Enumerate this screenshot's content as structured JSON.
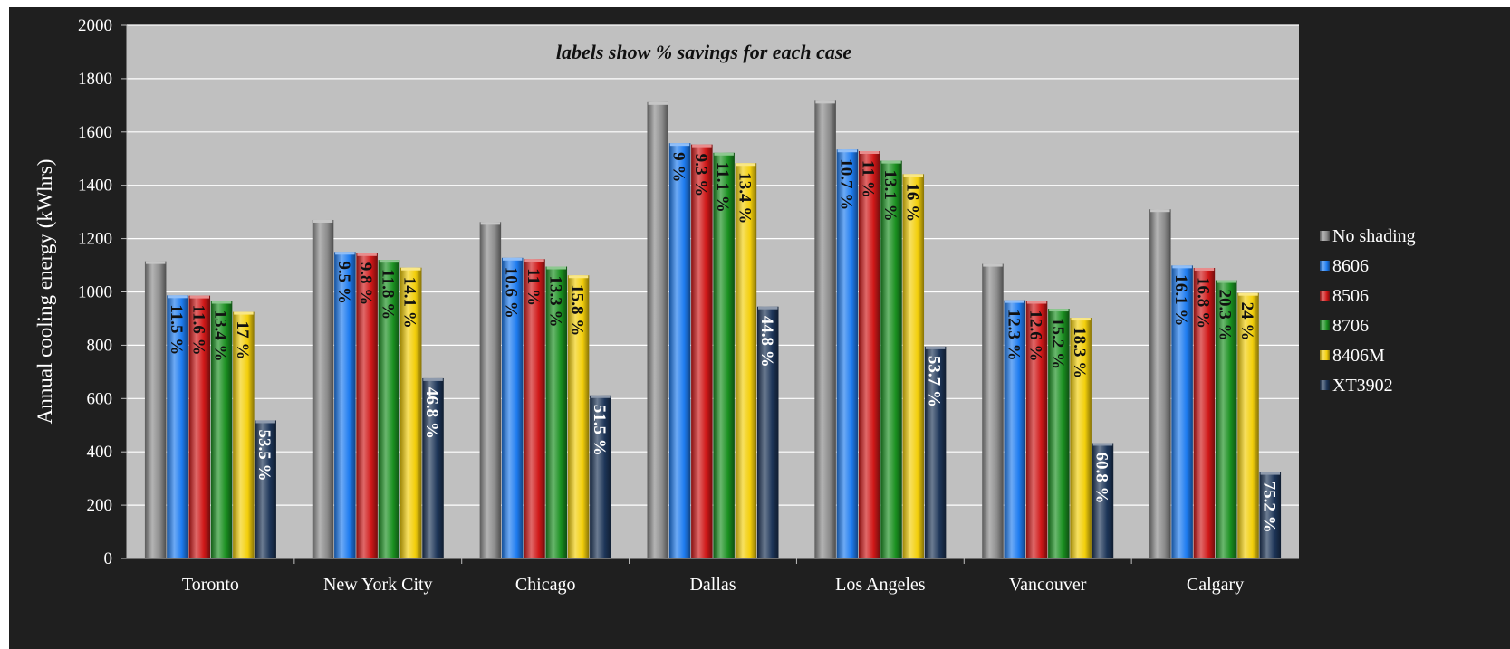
{
  "chart_data": {
    "type": "bar",
    "title": "",
    "annotation": "labels show % savings for each case",
    "ylabel": "Annual cooling energy (kWhrs)",
    "xlabel": "",
    "ylim": [
      0,
      2000
    ],
    "yticks": [
      "0",
      "200",
      "400",
      "600",
      "800",
      "1000",
      "1200",
      "1400",
      "1600",
      "1800",
      "2000"
    ],
    "grid": true,
    "legend_position": "right",
    "categories": [
      "Toronto",
      "New York City",
      "Chicago",
      "Dallas",
      "Los Angeles",
      "Vancouver",
      "Calgary"
    ],
    "series": [
      {
        "name": "No shading",
        "color": "#8c8c8c",
        "label_color": "#111111",
        "values": [
          1115,
          1270,
          1262,
          1712,
          1717,
          1105,
          1310
        ],
        "labels": [
          "",
          "",
          "",
          "",
          "",
          "",
          ""
        ]
      },
      {
        "name": "8606",
        "color": "#1e7cf0",
        "label_color": "#111111",
        "values": [
          987,
          1150,
          1128,
          1558,
          1534,
          969,
          1099
        ],
        "labels": [
          "11.5 %",
          "9.5 %",
          "10.6 %",
          "9 %",
          "10.7 %",
          "12.3 %",
          "16.1 %"
        ]
      },
      {
        "name": "8506",
        "color": "#d01818",
        "label_color": "#111111",
        "values": [
          986,
          1145,
          1123,
          1553,
          1528,
          966,
          1090
        ],
        "labels": [
          "11.6 %",
          "9.8 %",
          "11 %",
          "9.3 %",
          "11 %",
          "12.6 %",
          "16.8 %"
        ]
      },
      {
        "name": "8706",
        "color": "#1a9020",
        "label_color": "#111111",
        "values": [
          966,
          1120,
          1095,
          1522,
          1492,
          937,
          1044
        ],
        "labels": [
          "13.4 %",
          "11.8 %",
          "13.3 %",
          "11.1 %",
          "13.1 %",
          "15.2 %",
          "20.3 %"
        ]
      },
      {
        "name": "8406M",
        "color": "#f3cf0b",
        "label_color": "#111111",
        "values": [
          925,
          1091,
          1062,
          1483,
          1442,
          903,
          996
        ],
        "labels": [
          "17 %",
          "14.1 %",
          "15.8 %",
          "13.4 %",
          "16 %",
          "18.3 %",
          "24 %"
        ]
      },
      {
        "name": "XT3902",
        "color": "#1d3558",
        "label_color": "#ffffff",
        "values": [
          518,
          676,
          612,
          945,
          795,
          433,
          324
        ],
        "labels": [
          "53.5 %",
          "46.8 %",
          "51.5 %",
          "44.8 %",
          "53.7 %",
          "60.8 %",
          "75.2 %"
        ]
      }
    ]
  }
}
